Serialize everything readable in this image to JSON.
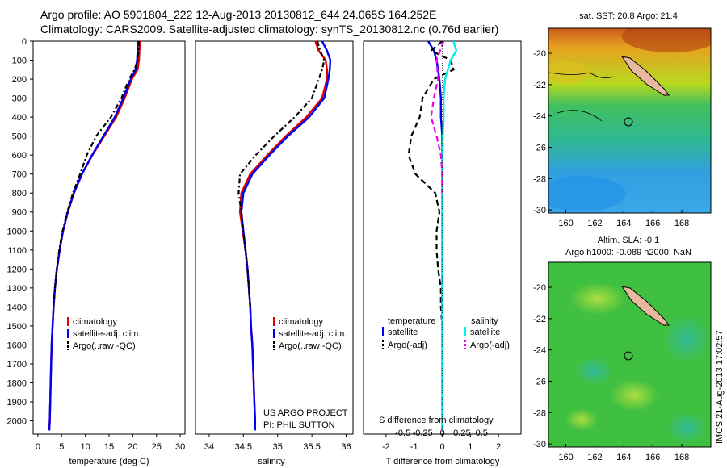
{
  "header": {
    "line1": "Argo profile: AO 5901804_222 12-Aug-2013 20130812_644 24.065S 164.252E",
    "line2": "Climatology: CARS2009. Satellite-adjusted climatology: synTS_20130812.nc (0.76d earlier)"
  },
  "side_stamp": "IMOS 21-Aug-2013 17:02:57",
  "annotations": {
    "project": "US ARGO PROJECT",
    "pi": "PI: PHIL SUTTON",
    "sdiff": "S difference from climatology",
    "sdiff_ticks": [
      "-0.5",
      "-0.25",
      "0",
      "0.25",
      "0.5"
    ]
  },
  "legend": {
    "climatology": "climatology",
    "satellite_adj": "satellite-adj. clim.",
    "argo": "Argo(..raw -QC)",
    "h_temperature": "temperature",
    "h_salinity": "salinity",
    "satellite": "satellite",
    "argo_adj": "Argo(-adj)"
  },
  "colors": {
    "climatology": "#dd0000",
    "satellite": "#0000ee",
    "argo": "#000000",
    "sal_sat": "#00eeee",
    "sal_argo": "#ee00ee"
  },
  "chart_data": [
    {
      "type": "line",
      "xlabel": "temperature (deg C)",
      "ylabel": "",
      "xlim": [
        -1,
        31
      ],
      "ylim": [
        2070,
        0
      ],
      "xticks": [
        0,
        5,
        10,
        15,
        20,
        25,
        30
      ],
      "yticks": [
        0,
        100,
        200,
        300,
        400,
        500,
        600,
        700,
        800,
        900,
        1000,
        1100,
        1200,
        1300,
        1400,
        1500,
        1600,
        1700,
        1800,
        1900,
        2000
      ],
      "series": [
        {
          "name": "climatology",
          "color": "#dd0000",
          "dash": "",
          "points": [
            [
              21.5,
              0
            ],
            [
              21.4,
              50
            ],
            [
              21.3,
              100
            ],
            [
              21.0,
              150
            ],
            [
              19.8,
              200
            ],
            [
              18.3,
              300
            ],
            [
              16.5,
              400
            ],
            [
              14.0,
              500
            ],
            [
              11.5,
              600
            ],
            [
              9.3,
              700
            ],
            [
              7.6,
              800
            ],
            [
              6.3,
              900
            ],
            [
              5.3,
              1000
            ],
            [
              4.6,
              1100
            ],
            [
              4.0,
              1200
            ],
            [
              3.6,
              1300
            ],
            [
              3.3,
              1400
            ],
            [
              3.1,
              1500
            ],
            [
              2.9,
              1600
            ],
            [
              2.8,
              1700
            ],
            [
              2.7,
              1800
            ],
            [
              2.6,
              1900
            ],
            [
              2.5,
              2000
            ],
            [
              2.4,
              2050
            ]
          ]
        },
        {
          "name": "satellite-adj. clim.",
          "color": "#0000ee",
          "dash": "",
          "points": [
            [
              21.0,
              0
            ],
            [
              21.0,
              50
            ],
            [
              20.9,
              100
            ],
            [
              20.6,
              150
            ],
            [
              19.6,
              200
            ],
            [
              18.0,
              300
            ],
            [
              16.2,
              400
            ],
            [
              13.8,
              500
            ],
            [
              11.4,
              600
            ],
            [
              9.3,
              700
            ],
            [
              7.6,
              800
            ],
            [
              6.3,
              900
            ],
            [
              5.3,
              1000
            ],
            [
              4.6,
              1100
            ],
            [
              4.0,
              1200
            ],
            [
              3.6,
              1300
            ],
            [
              3.3,
              1400
            ],
            [
              3.1,
              1500
            ],
            [
              2.9,
              1600
            ],
            [
              2.8,
              1700
            ],
            [
              2.7,
              1800
            ],
            [
              2.6,
              1900
            ],
            [
              2.5,
              2000
            ],
            [
              2.4,
              2050
            ]
          ]
        },
        {
          "name": "Argo(..raw -QC)",
          "color": "#000000",
          "dash": "6,3,2,3",
          "points": [
            [
              21.3,
              0
            ],
            [
              21.2,
              50
            ],
            [
              21.0,
              100
            ],
            [
              20.4,
              150
            ],
            [
              19.2,
              200
            ],
            [
              17.6,
              300
            ],
            [
              15.4,
              400
            ],
            [
              12.3,
              500
            ],
            [
              10.3,
              600
            ],
            [
              8.9,
              700
            ],
            [
              7.4,
              800
            ],
            [
              6.2,
              900
            ],
            [
              5.2,
              1000
            ],
            [
              4.5,
              1100
            ],
            [
              4.0,
              1200
            ],
            [
              3.6,
              1300
            ],
            [
              3.3,
              1400
            ]
          ]
        }
      ]
    },
    {
      "type": "line",
      "xlabel": "salinity",
      "ylabel": "",
      "xlim": [
        33.8,
        36.1
      ],
      "ylim": [
        2070,
        0
      ],
      "xticks": [
        34,
        34.5,
        35,
        35.5,
        36
      ],
      "yticks": [],
      "series": [
        {
          "name": "climatology",
          "color": "#dd0000",
          "dash": "",
          "points": [
            [
              35.55,
              0
            ],
            [
              35.6,
              50
            ],
            [
              35.7,
              100
            ],
            [
              35.72,
              150
            ],
            [
              35.72,
              200
            ],
            [
              35.65,
              300
            ],
            [
              35.42,
              400
            ],
            [
              35.12,
              500
            ],
            [
              34.85,
              600
            ],
            [
              34.6,
              700
            ],
            [
              34.47,
              800
            ],
            [
              34.45,
              900
            ],
            [
              34.49,
              1000
            ],
            [
              34.53,
              1100
            ],
            [
              34.56,
              1200
            ],
            [
              34.58,
              1300
            ],
            [
              34.6,
              1400
            ],
            [
              34.61,
              1500
            ],
            [
              34.63,
              1600
            ],
            [
              34.64,
              1700
            ],
            [
              34.65,
              1800
            ],
            [
              34.66,
              1900
            ],
            [
              34.67,
              2000
            ],
            [
              34.67,
              2050
            ]
          ]
        },
        {
          "name": "satellite-adj. clim.",
          "color": "#0000ee",
          "dash": "",
          "points": [
            [
              35.65,
              0
            ],
            [
              35.72,
              50
            ],
            [
              35.77,
              100
            ],
            [
              35.76,
              150
            ],
            [
              35.74,
              200
            ],
            [
              35.68,
              300
            ],
            [
              35.46,
              400
            ],
            [
              35.15,
              500
            ],
            [
              34.88,
              600
            ],
            [
              34.63,
              700
            ],
            [
              34.5,
              800
            ],
            [
              34.47,
              900
            ],
            [
              34.5,
              1000
            ],
            [
              34.53,
              1100
            ],
            [
              34.56,
              1200
            ],
            [
              34.58,
              1300
            ],
            [
              34.6,
              1400
            ],
            [
              34.61,
              1500
            ],
            [
              34.63,
              1600
            ],
            [
              34.64,
              1700
            ],
            [
              34.65,
              1800
            ],
            [
              34.66,
              1900
            ],
            [
              34.67,
              2000
            ],
            [
              34.67,
              2050
            ]
          ]
        },
        {
          "name": "Argo(..raw -QC)",
          "color": "#000000",
          "dash": "6,3,2,3",
          "points": [
            [
              35.58,
              0
            ],
            [
              35.62,
              50
            ],
            [
              35.68,
              100
            ],
            [
              35.65,
              150
            ],
            [
              35.6,
              200
            ],
            [
              35.5,
              300
            ],
            [
              35.25,
              400
            ],
            [
              34.95,
              500
            ],
            [
              34.68,
              600
            ],
            [
              34.45,
              700
            ],
            [
              34.43,
              800
            ],
            [
              34.47,
              900
            ],
            [
              34.5,
              1000
            ],
            [
              34.53,
              1100
            ],
            [
              34.56,
              1200
            ],
            [
              34.58,
              1300
            ],
            [
              34.6,
              1400
            ]
          ]
        }
      ]
    },
    {
      "type": "line",
      "xlabel": "T difference from climatology",
      "ylabel": "",
      "xlim": [
        -2.8,
        2.8
      ],
      "ylim": [
        2070,
        0
      ],
      "xticks": [
        -2,
        -1,
        0,
        1,
        2
      ],
      "yticks": [],
      "series": [
        {
          "name": "temperature satellite",
          "color": "#0000ee",
          "dash": "",
          "points": [
            [
              -0.5,
              0
            ],
            [
              -0.3,
              50
            ],
            [
              -0.2,
              100
            ],
            [
              -0.1,
              200
            ],
            [
              -0.05,
              300
            ],
            [
              -0.05,
              400
            ],
            [
              0,
              500
            ],
            [
              0,
              700
            ],
            [
              0,
              1000
            ],
            [
              0,
              1500
            ],
            [
              0,
              2050
            ]
          ]
        },
        {
          "name": "temperature Argo(-adj)",
          "color": "#000000",
          "dash": "7,4",
          "points": [
            [
              0,
              0
            ],
            [
              -0.4,
              50
            ],
            [
              0.3,
              100
            ],
            [
              0.4,
              150
            ],
            [
              -0.3,
              200
            ],
            [
              -0.7,
              300
            ],
            [
              -0.8,
              400
            ],
            [
              -1.1,
              500
            ],
            [
              -1.2,
              600
            ],
            [
              -0.95,
              700
            ],
            [
              -0.25,
              800
            ],
            [
              -0.1,
              900
            ],
            [
              -0.2,
              1000
            ],
            [
              -0.2,
              1100
            ],
            [
              -0.15,
              1200
            ],
            [
              -0.05,
              1300
            ],
            [
              -0.05,
              1400
            ],
            [
              0,
              1500
            ]
          ]
        },
        {
          "name": "salinity satellite",
          "color": "#00eeee",
          "dash": "",
          "points": [
            [
              0.4,
              0
            ],
            [
              0.5,
              50
            ],
            [
              0.3,
              100
            ],
            [
              0.1,
              200
            ],
            [
              0.05,
              300
            ],
            [
              0.05,
              400
            ],
            [
              0.02,
              500
            ],
            [
              0,
              700
            ],
            [
              0,
              1000
            ],
            [
              0,
              1500
            ],
            [
              0,
              2050
            ]
          ]
        },
        {
          "name": "salinity Argo(-adj)",
          "color": "#ee00ee",
          "dash": "7,4",
          "points": [
            [
              0.05,
              0
            ],
            [
              -0.2,
              100
            ],
            [
              -0.15,
              200
            ],
            [
              -0.3,
              300
            ],
            [
              -0.4,
              400
            ],
            [
              -0.2,
              500
            ],
            [
              -0.05,
              600
            ],
            [
              0,
              700
            ],
            [
              0,
              800
            ]
          ]
        }
      ]
    }
  ],
  "maps": [
    {
      "title": "sat. SST: 20.8  Argo: 21.4",
      "xticks": [
        "160",
        "162",
        "164",
        "166",
        "168"
      ],
      "yticks": [
        "-20",
        "-22",
        "-24",
        "-26",
        "-28",
        "-30"
      ]
    },
    {
      "title1": "Altim. SLA: -0.1",
      "title2": "Argo h1000: -0.089  h2000: NaN",
      "xticks": [
        "160",
        "162",
        "164",
        "166",
        "168"
      ],
      "yticks": [
        "-20",
        "-22",
        "-24",
        "-26",
        "-28",
        "-30"
      ]
    }
  ]
}
